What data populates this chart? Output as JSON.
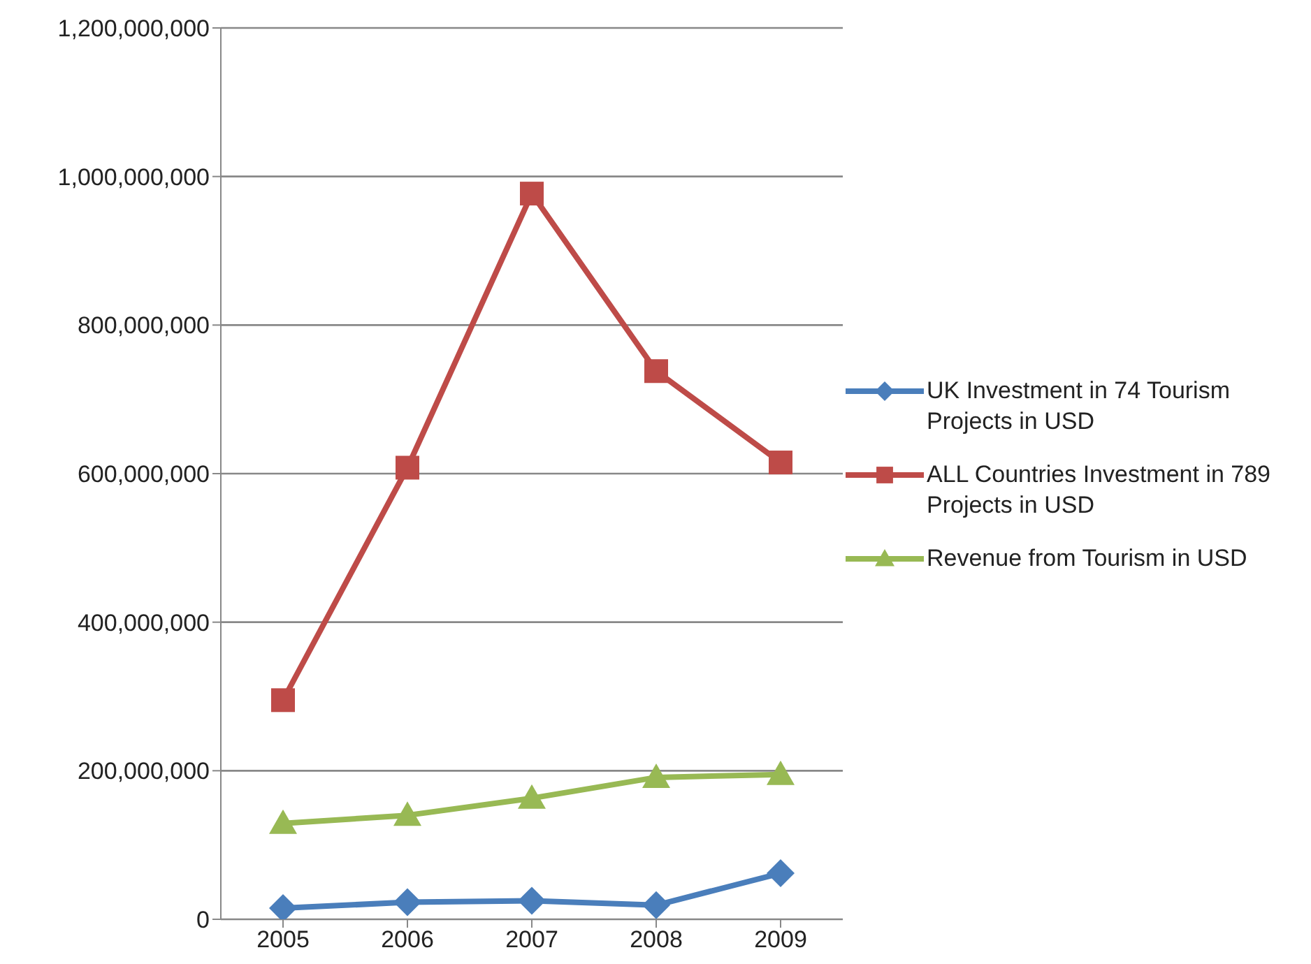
{
  "chart_data": {
    "type": "line",
    "categories": [
      "2005",
      "2006",
      "2007",
      "2008",
      "2009"
    ],
    "series": [
      {
        "name": "UK Investment in 74 Tourism Projects in USD",
        "color": "#4a7ebb",
        "marker": "diamond",
        "values": [
          15000000,
          23000000,
          25000000,
          19000000,
          62000000
        ]
      },
      {
        "name": "ALL Countries Investment in 789 Projects in USD",
        "color": "#be4b48",
        "marker": "square",
        "values": [
          295000000,
          608000000,
          977000000,
          738000000,
          615000000
        ]
      },
      {
        "name": "Revenue from Tourism in USD",
        "color": "#98b954",
        "marker": "triangle",
        "values": [
          129000000,
          140000000,
          163000000,
          191000000,
          195000000
        ]
      }
    ],
    "ylim": [
      0,
      1200000000
    ],
    "yticks": [
      0,
      {
        "value": 200000000,
        "label": "200,000,000"
      },
      {
        "value": 400000000,
        "label": "400,000,000"
      },
      {
        "value": 600000000,
        "label": "600,000,000"
      },
      {
        "value": 800000000,
        "label": "800,000,000"
      },
      {
        "value": 1000000000,
        "label": "1,000,000,000"
      },
      {
        "value": 1200000000,
        "label": "1,200,000,000"
      }
    ],
    "grid": "y",
    "legend": "right"
  }
}
